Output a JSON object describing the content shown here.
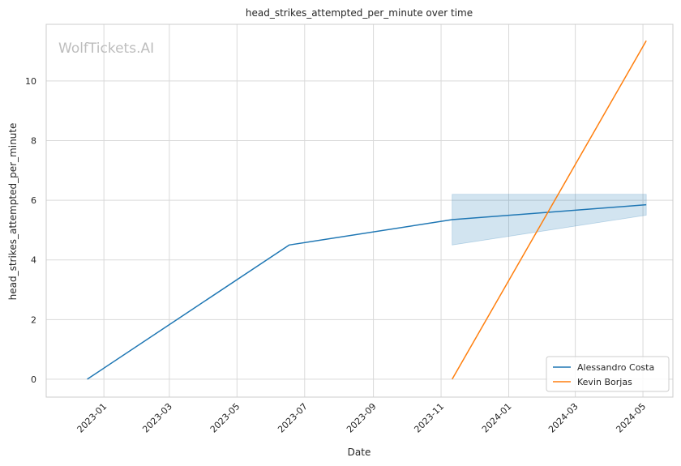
{
  "chart_data": {
    "type": "line",
    "title": "head_strikes_attempted_per_minute over time",
    "xlabel": "Date",
    "ylabel": "head_strikes_attempted_per_minute",
    "watermark": "WolfTickets.AI",
    "xlim": [
      "2022-11-10",
      "2024-05-28"
    ],
    "ylim": [
      -0.6,
      11.9
    ],
    "x_ticks": [
      "2023-01",
      "2023-03",
      "2023-05",
      "2023-07",
      "2023-09",
      "2023-11",
      "2024-01",
      "2024-03",
      "2024-05"
    ],
    "y_ticks": [
      0,
      2,
      4,
      6,
      8,
      10
    ],
    "grid": true,
    "legend_position": "bottom-right",
    "series": [
      {
        "name": "Alessandro Costa",
        "color": "#1f77b4",
        "points": [
          {
            "x": "2022-12-17",
            "y": 0.0
          },
          {
            "x": "2023-06-17",
            "y": 4.5
          },
          {
            "x": "2023-11-11",
            "y": 5.35
          },
          {
            "x": "2024-05-04",
            "y": 5.85
          }
        ],
        "band": [
          {
            "x": "2023-11-11",
            "low": 4.5,
            "high": 6.2
          },
          {
            "x": "2024-05-04",
            "low": 5.5,
            "high": 6.2
          }
        ]
      },
      {
        "name": "Kevin Borjas",
        "color": "#ff7f0e",
        "points": [
          {
            "x": "2023-11-11",
            "y": 0.0
          },
          {
            "x": "2024-05-04",
            "y": 11.35
          }
        ]
      }
    ]
  }
}
